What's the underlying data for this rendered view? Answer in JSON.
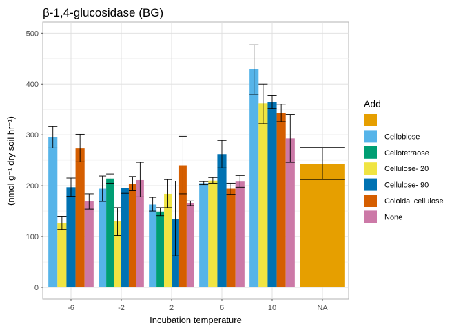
{
  "chart_data": {
    "type": "bar",
    "title": "β-1,4-glucosidase (BG)",
    "xlabel": "Incubation temperature",
    "ylabel": "(nmol g⁻¹ dry soil hr⁻¹)",
    "ylim": [
      0,
      500
    ],
    "yticks": [
      0,
      100,
      200,
      300,
      400,
      500
    ],
    "categories": [
      "-6",
      "-2",
      "2",
      "6",
      "10",
      "NA"
    ],
    "grid": true,
    "legend": {
      "title": "Add",
      "placement": "right"
    },
    "series": [
      {
        "name": "",
        "color": "#E69F00",
        "values": [
          null,
          null,
          null,
          null,
          null,
          243
        ],
        "errors": [
          null,
          null,
          null,
          null,
          null,
          [
            212,
            275
          ]
        ]
      },
      {
        "name": "Cellobiose",
        "color": "#56B4E9",
        "values": [
          295,
          194,
          163,
          205,
          429,
          null
        ],
        "errors": [
          [
            274,
            316
          ],
          [
            169,
            219
          ],
          [
            150,
            177
          ],
          [
            202,
            208
          ],
          [
            380,
            477
          ],
          null
        ]
      },
      {
        "name": "Cellotetraose",
        "color": "#009E73",
        "values": [
          null,
          214,
          149,
          null,
          null,
          null
        ],
        "errors": [
          null,
          [
            205,
            223
          ],
          [
            141,
            157
          ],
          null,
          null,
          null
        ]
      },
      {
        "name": "Cellulose- 20",
        "color": "#F0E442",
        "values": [
          127,
          130,
          184,
          210,
          362,
          null
        ],
        "errors": [
          [
            114,
            140
          ],
          [
            102,
            157
          ],
          [
            157,
            212
          ],
          [
            205,
            216
          ],
          [
            322,
            400
          ],
          null
        ]
      },
      {
        "name": "Cellulose- 90",
        "color": "#0072B2",
        "values": [
          197,
          196,
          135,
          262,
          365,
          null
        ],
        "errors": [
          [
            179,
            215
          ],
          [
            185,
            209
          ],
          [
            62,
            209
          ],
          [
            235,
            289
          ],
          [
            352,
            378
          ],
          null
        ]
      },
      {
        "name": "Coloidal cellulose",
        "color": "#D55E00",
        "values": [
          273,
          204,
          240,
          194,
          343,
          null
        ],
        "errors": [
          [
            247,
            301
          ],
          [
            190,
            218
          ],
          [
            184,
            297
          ],
          [
            183,
            205
          ],
          [
            326,
            360
          ],
          null
        ]
      },
      {
        "name": "None",
        "color": "#CC79A7",
        "values": [
          169,
          211,
          165,
          null,
          293,
          null
        ],
        "errors": [
          [
            154,
            184
          ],
          [
            178,
            246
          ],
          [
            161,
            170
          ],
          null,
          [
            246,
            340
          ],
          null
        ]
      },
      {
        "name": "None",
        "color": "#CC79A7",
        "values": [
          null,
          null,
          null,
          208,
          null,
          null
        ],
        "errors": [
          null,
          null,
          null,
          [
            197,
            220
          ],
          null,
          null
        ]
      }
    ]
  }
}
